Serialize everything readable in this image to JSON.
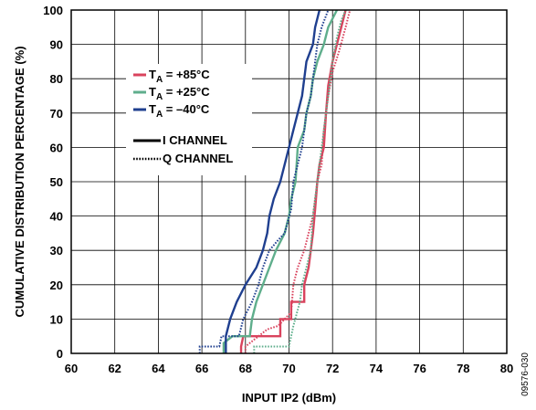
{
  "chart_data": {
    "type": "line",
    "step": true,
    "xlabel": "INPUT IP2 (dBm)",
    "ylabel": "CUMULATIVE DISTRIBUTION PERCENTAGE (%)",
    "xlim": [
      60,
      80
    ],
    "ylim": [
      0,
      100
    ],
    "xticks": [
      "60",
      "62",
      "64",
      "66",
      "68",
      "70",
      "72",
      "74",
      "76",
      "78",
      "80"
    ],
    "yticks": [
      "0",
      "10",
      "20",
      "30",
      "40",
      "50",
      "60",
      "70",
      "80",
      "90",
      "100"
    ],
    "grid": true,
    "figure_id": "09576-030",
    "legend": {
      "position": "upper-left",
      "temperatures": [
        {
          "main": "T",
          "sub": "A",
          "rest": " = +85°C",
          "color": "#d9435d"
        },
        {
          "main": "T",
          "sub": "A",
          "rest": " = +25°C",
          "color": "#5fae8c"
        },
        {
          "main": "T",
          "sub": "A",
          "rest": " = –40°C",
          "color": "#1f3f8f"
        }
      ],
      "channels": [
        {
          "label": "I CHANNEL",
          "style": "solid"
        },
        {
          "label": "Q CHANNEL",
          "style": "dotted"
        }
      ]
    },
    "series": [
      {
        "temperature": "T_A = +85°C",
        "channel": "I CHANNEL",
        "color": "#d9435d",
        "style": "solid",
        "points": [
          [
            67.8,
            0
          ],
          [
            67.8,
            2
          ],
          [
            67.9,
            5
          ],
          [
            69.6,
            5
          ],
          [
            69.6,
            10
          ],
          [
            70.1,
            10
          ],
          [
            70.1,
            15
          ],
          [
            70.7,
            15
          ],
          [
            70.7,
            20
          ],
          [
            70.9,
            25
          ],
          [
            71.0,
            30
          ],
          [
            71.1,
            35
          ],
          [
            71.2,
            42
          ],
          [
            71.3,
            50
          ],
          [
            71.4,
            55
          ],
          [
            71.6,
            60
          ],
          [
            71.7,
            70
          ],
          [
            71.8,
            78
          ],
          [
            72.0,
            85
          ],
          [
            72.2,
            90
          ],
          [
            72.4,
            95
          ],
          [
            72.6,
            100
          ]
        ]
      },
      {
        "temperature": "T_A = +85°C",
        "channel": "Q CHANNEL",
        "color": "#d9435d",
        "style": "dotted",
        "points": [
          [
            68.0,
            0
          ],
          [
            68.0,
            2
          ],
          [
            68.6,
            5
          ],
          [
            69.0,
            7
          ],
          [
            69.5,
            8
          ],
          [
            70.1,
            12
          ],
          [
            70.2,
            20
          ],
          [
            70.4,
            25
          ],
          [
            70.7,
            30
          ],
          [
            70.9,
            35
          ],
          [
            71.1,
            40
          ],
          [
            71.3,
            50
          ],
          [
            71.5,
            55
          ],
          [
            71.6,
            65
          ],
          [
            71.8,
            75
          ],
          [
            72.0,
            82
          ],
          [
            72.3,
            88
          ],
          [
            72.6,
            95
          ],
          [
            72.8,
            100
          ]
        ]
      },
      {
        "temperature": "T_A = +25°C",
        "channel": "I CHANNEL",
        "color": "#5fae8c",
        "style": "solid",
        "points": [
          [
            67.0,
            0
          ],
          [
            67.0,
            3
          ],
          [
            67.4,
            5
          ],
          [
            68.2,
            5
          ],
          [
            68.3,
            10
          ],
          [
            68.5,
            15
          ],
          [
            68.8,
            20
          ],
          [
            69.1,
            25
          ],
          [
            69.4,
            30
          ],
          [
            69.8,
            35
          ],
          [
            70.0,
            40
          ],
          [
            70.1,
            45
          ],
          [
            70.3,
            50
          ],
          [
            70.4,
            60
          ],
          [
            70.7,
            65
          ],
          [
            70.8,
            70
          ],
          [
            71.0,
            75
          ],
          [
            71.1,
            80
          ],
          [
            71.3,
            85
          ],
          [
            71.6,
            90
          ],
          [
            71.8,
            95
          ],
          [
            72.2,
            100
          ]
        ]
      },
      {
        "temperature": "T_A = +25°C",
        "channel": "Q CHANNEL",
        "color": "#5fae8c",
        "style": "dotted",
        "points": [
          [
            68.4,
            0
          ],
          [
            68.4,
            2
          ],
          [
            70.0,
            2
          ],
          [
            70.2,
            8
          ],
          [
            70.5,
            15
          ],
          [
            70.6,
            20
          ],
          [
            70.8,
            25
          ],
          [
            71.0,
            30
          ],
          [
            71.1,
            40
          ],
          [
            71.3,
            50
          ],
          [
            71.4,
            55
          ],
          [
            71.6,
            65
          ],
          [
            71.8,
            75
          ],
          [
            72.0,
            85
          ],
          [
            72.2,
            92
          ],
          [
            72.4,
            97
          ],
          [
            72.6,
            100
          ]
        ]
      },
      {
        "temperature": "T_A = –40°C",
        "channel": "I CHANNEL",
        "color": "#1f3f8f",
        "style": "solid",
        "points": [
          [
            67.1,
            0
          ],
          [
            67.1,
            5
          ],
          [
            67.3,
            10
          ],
          [
            67.6,
            15
          ],
          [
            68.0,
            20
          ],
          [
            68.5,
            25
          ],
          [
            68.8,
            30
          ],
          [
            69.0,
            35
          ],
          [
            69.1,
            40
          ],
          [
            69.3,
            45
          ],
          [
            69.6,
            50
          ],
          [
            69.8,
            55
          ],
          [
            70.0,
            60
          ],
          [
            70.2,
            65
          ],
          [
            70.4,
            70
          ],
          [
            70.6,
            75
          ],
          [
            70.7,
            80
          ],
          [
            70.8,
            85
          ],
          [
            71.1,
            90
          ],
          [
            71.2,
            95
          ],
          [
            71.4,
            100
          ]
        ]
      },
      {
        "temperature": "T_A = –40°C",
        "channel": "Q CHANNEL",
        "color": "#1f3f8f",
        "style": "dotted",
        "points": [
          [
            65.9,
            0
          ],
          [
            65.9,
            2
          ],
          [
            66.8,
            2
          ],
          [
            66.9,
            5
          ],
          [
            67.7,
            5
          ],
          [
            67.9,
            10
          ],
          [
            68.3,
            15
          ],
          [
            68.6,
            20
          ],
          [
            68.8,
            25
          ],
          [
            69.1,
            30
          ],
          [
            69.5,
            33
          ],
          [
            69.8,
            35
          ],
          [
            70.1,
            42
          ],
          [
            70.2,
            50
          ],
          [
            70.4,
            55
          ],
          [
            70.6,
            60
          ],
          [
            70.7,
            65
          ],
          [
            70.8,
            70
          ],
          [
            71.0,
            75
          ],
          [
            71.2,
            85
          ],
          [
            71.3,
            90
          ],
          [
            71.5,
            95
          ],
          [
            71.8,
            100
          ]
        ]
      }
    ]
  }
}
